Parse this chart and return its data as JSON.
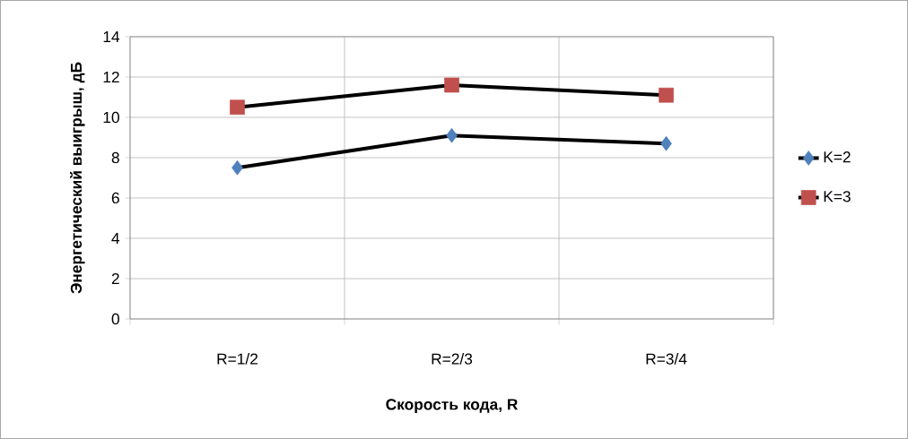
{
  "chart_data": {
    "type": "line",
    "xlabel": "Скорость кода, R",
    "ylabel": "Энергетический выигрыш, дБ",
    "categories": [
      "R=1/2",
      "R=2/3",
      "R=3/4"
    ],
    "series": [
      {
        "name": "K=2",
        "color": "#4f81bd",
        "values": [
          7.5,
          9.1,
          8.7
        ],
        "marker": "diamond"
      },
      {
        "name": "K=3",
        "color": "#c0504d",
        "values": [
          10.5,
          11.6,
          11.1
        ],
        "marker": "square"
      }
    ],
    "ylim": [
      0,
      14
    ],
    "yticks": [
      0,
      2,
      4,
      6,
      8,
      10,
      12,
      14
    ],
    "grid": true,
    "legend": "right",
    "line_style": "solid"
  }
}
